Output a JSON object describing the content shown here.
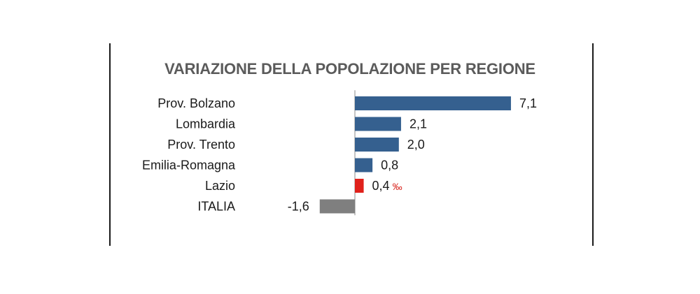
{
  "chart_data": {
    "type": "bar",
    "orientation": "horizontal",
    "title": "VARIAZIONE DELLA POPOLAZIONE PER REGIONE",
    "categories": [
      "Prov. Bolzano",
      "Lombardia",
      "Prov. Trento",
      "Emilia-Romagna",
      "Lazio",
      "ITALIA"
    ],
    "values": [
      7.1,
      2.1,
      2.0,
      0.8,
      0.4,
      -1.6
    ],
    "value_labels": [
      "7,1",
      "2,1",
      "2,0",
      "0,8",
      "0,4",
      "-1,6"
    ],
    "unit": "‰",
    "unit_on_index": 4,
    "xlim": [
      -2,
      8
    ],
    "grid": false,
    "legend": "none",
    "colors": {
      "default": "#35608f",
      "highlight": "#e0211b",
      "total": "#7f7f7f",
      "axis": "#888888",
      "text": "#1a1a1a",
      "highlight_text": "#d8231c"
    },
    "highlight_index": 4,
    "total_index": 5
  }
}
